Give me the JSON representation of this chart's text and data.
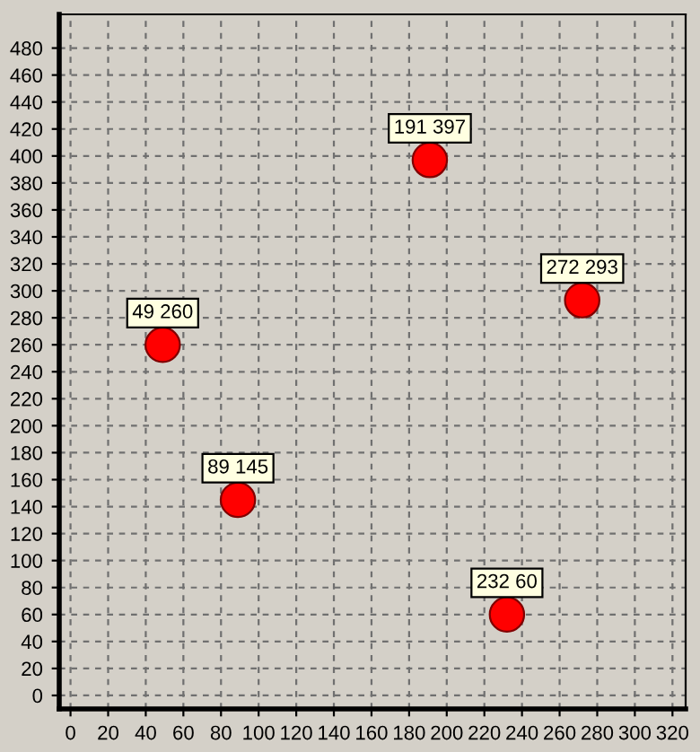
{
  "chart_data": {
    "type": "scatter",
    "x": [
      49,
      89,
      191,
      232,
      272
    ],
    "series": [
      {
        "color": "#ff0000",
        "values": [
          260,
          145,
          397,
          60,
          293
        ]
      }
    ],
    "annotations": [
      {
        "text": "49 260",
        "x": 49,
        "y": 260
      },
      {
        "text": "89 145",
        "x": 89,
        "y": 145
      },
      {
        "text": "191 397",
        "x": 191,
        "y": 397
      },
      {
        "text": "232 60",
        "x": 232,
        "y": 60
      },
      {
        "text": "272 293",
        "x": 272,
        "y": 293
      }
    ],
    "xlim": [
      -6,
      327
    ],
    "ylim": [
      -10,
      505
    ],
    "xticks": [
      0,
      20,
      40,
      60,
      80,
      100,
      120,
      140,
      160,
      180,
      200,
      220,
      240,
      260,
      280,
      300,
      320
    ],
    "yticks": [
      0,
      20,
      40,
      60,
      80,
      100,
      120,
      140,
      160,
      180,
      200,
      220,
      240,
      260,
      280,
      300,
      320,
      340,
      360,
      380,
      400,
      420,
      440,
      460,
      480
    ],
    "grid": true,
    "marker": "circle",
    "legend": false
  }
}
